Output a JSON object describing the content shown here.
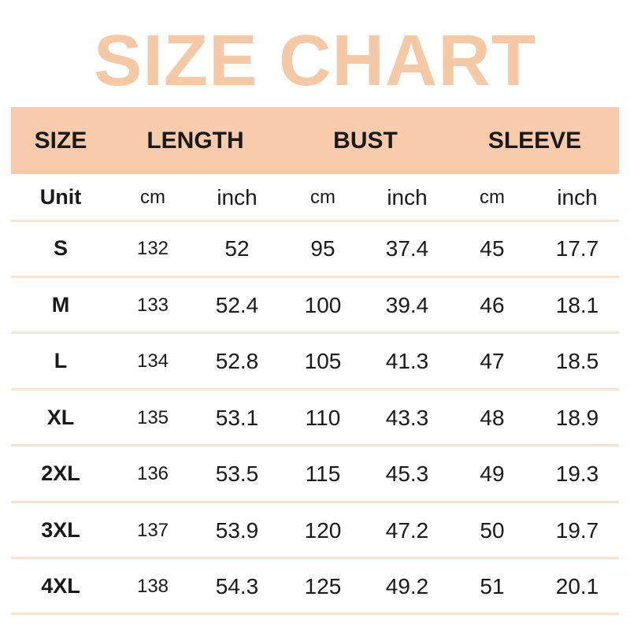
{
  "title": "SIZE CHART",
  "colors": {
    "title": "#f6c9a6",
    "header_bg": "#f7cbab",
    "divider": "#fbe3d3"
  },
  "headers": [
    "SIZE",
    "LENGTH",
    "BUST",
    "SLEEVE"
  ],
  "unit_row": [
    "Unit",
    "cm",
    "inch",
    "cm",
    "inch",
    "cm",
    "inch"
  ],
  "rows": [
    [
      "S",
      "132",
      "52",
      "95",
      "37.4",
      "45",
      "17.7"
    ],
    [
      "M",
      "133",
      "52.4",
      "100",
      "39.4",
      "46",
      "18.1"
    ],
    [
      "L",
      "134",
      "52.8",
      "105",
      "41.3",
      "47",
      "18.5"
    ],
    [
      "XL",
      "135",
      "53.1",
      "110",
      "43.3",
      "48",
      "18.9"
    ],
    [
      "2XL",
      "136",
      "53.5",
      "115",
      "45.3",
      "49",
      "19.3"
    ],
    [
      "3XL",
      "137",
      "53.9",
      "120",
      "47.2",
      "50",
      "19.7"
    ],
    [
      "4XL",
      "138",
      "54.3",
      "125",
      "49.2",
      "51",
      "20.1"
    ]
  ]
}
